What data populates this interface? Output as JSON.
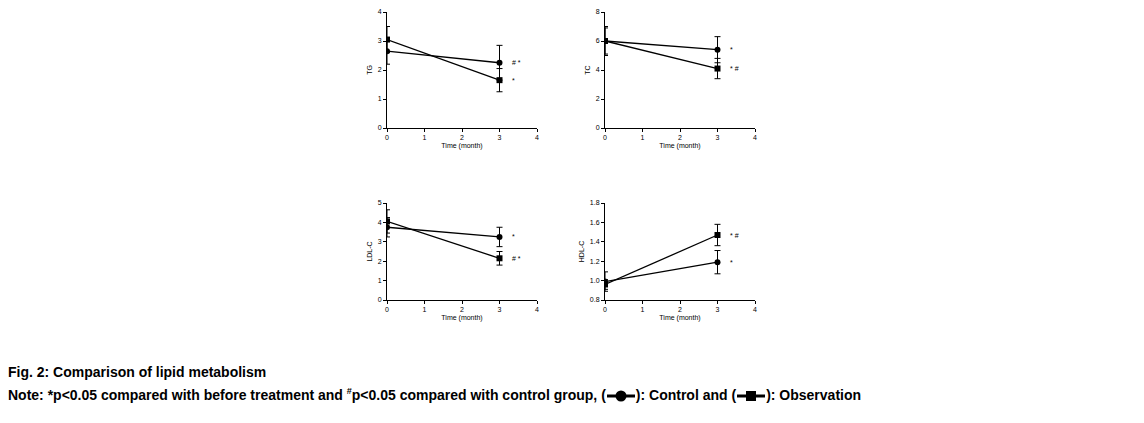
{
  "chart_data": [
    {
      "type": "line",
      "x_label": "Time (month)",
      "y_label": "TG",
      "x": [
        0,
        3
      ],
      "xlim": [
        0,
        4
      ],
      "xticks": [
        0,
        1,
        2,
        3,
        4
      ],
      "ylim": [
        0,
        4
      ],
      "yticks": [
        0,
        1,
        2,
        3,
        4
      ],
      "series": [
        {
          "name": "Control",
          "color": "#000000",
          "marker": "circle",
          "values": [
            2.65,
            2.25
          ],
          "errors": [
            0.45,
            0.6
          ],
          "annotation": "# *"
        },
        {
          "name": "Observation",
          "color": "#000000",
          "marker": "square",
          "values": [
            3.05,
            1.65
          ],
          "errors": [
            0.45,
            0.4
          ],
          "annotation": "*"
        }
      ]
    },
    {
      "type": "line",
      "x_label": "Time (month)",
      "y_label": "TC",
      "x": [
        0,
        3
      ],
      "xlim": [
        0,
        4
      ],
      "xticks": [
        0,
        1,
        2,
        3,
        4
      ],
      "ylim": [
        0,
        8
      ],
      "yticks": [
        0,
        2,
        4,
        6,
        8
      ],
      "series": [
        {
          "name": "Control",
          "color": "#000000",
          "marker": "circle",
          "values": [
            6.0,
            5.4
          ],
          "errors": [
            0.9,
            0.9
          ],
          "annotation": "*"
        },
        {
          "name": "Observation",
          "color": "#000000",
          "marker": "square",
          "values": [
            6.0,
            4.1
          ],
          "errors": [
            1.0,
            0.7
          ],
          "annotation": "* #"
        }
      ]
    },
    {
      "type": "line",
      "x_label": "Time (month)",
      "y_label": "LDL-C",
      "x": [
        0,
        3
      ],
      "xlim": [
        0,
        4
      ],
      "xticks": [
        0,
        1,
        2,
        3,
        4
      ],
      "ylim": [
        0,
        5
      ],
      "yticks": [
        0,
        1,
        2,
        3,
        4,
        5
      ],
      "series": [
        {
          "name": "Control",
          "color": "#000000",
          "marker": "circle",
          "values": [
            3.75,
            3.25
          ],
          "errors": [
            0.5,
            0.5
          ],
          "annotation": "*"
        },
        {
          "name": "Observation",
          "color": "#000000",
          "marker": "square",
          "values": [
            4.05,
            2.15
          ],
          "errors": [
            0.6,
            0.35
          ],
          "annotation": "# *"
        }
      ]
    },
    {
      "type": "line",
      "x_label": "Time (month)",
      "y_label": "HDL-C",
      "x": [
        0,
        3
      ],
      "xlim": [
        0,
        4
      ],
      "xticks": [
        0,
        1,
        2,
        3,
        4
      ],
      "ylim": [
        0.8,
        1.8
      ],
      "yticks": [
        0.8,
        {
          "value": 1,
          "label": "1.0"
        },
        1.2,
        1.4,
        1.6,
        1.8
      ],
      "series": [
        {
          "name": "Control",
          "color": "#000000",
          "marker": "circle",
          "values": [
            0.99,
            1.19
          ],
          "errors": [
            0.1,
            0.12
          ],
          "annotation": "*"
        },
        {
          "name": "Observation",
          "color": "#000000",
          "marker": "square",
          "values": [
            0.96,
            1.47
          ],
          "errors": [
            0.05,
            0.11
          ],
          "annotation": "* #"
        }
      ]
    }
  ],
  "caption": {
    "title": "Fig. 2: Comparison of lipid metabolism",
    "note": [
      {
        "text": "Note: *p<0.05 compared with before treatment and "
      },
      {
        "sup": "#"
      },
      {
        "text": "p<0.05 compared with control group, ("
      },
      {
        "symbol": 0
      },
      {
        "text": "): "
      },
      {
        "series_name": 0
      },
      {
        "text": " and ("
      },
      {
        "symbol": 1
      },
      {
        "text": "): "
      },
      {
        "series_name": 1
      }
    ]
  }
}
